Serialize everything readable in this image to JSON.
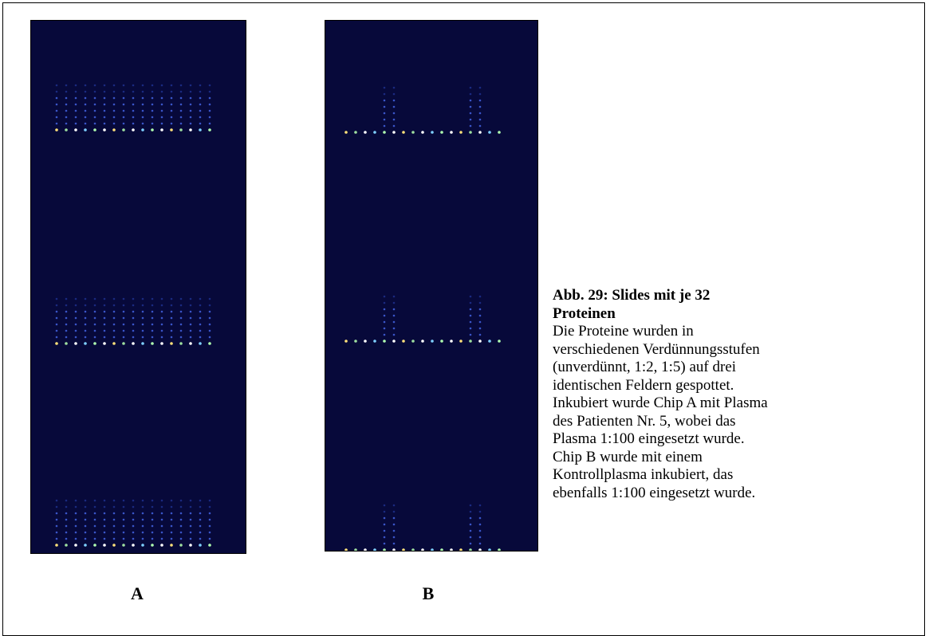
{
  "figure": {
    "panels": [
      {
        "label": "A"
      },
      {
        "label": "B"
      }
    ],
    "caption": {
      "title_lines": [
        "Abb. 29: Slides mit je 32",
        "Proteinen"
      ],
      "body_lines": [
        "Die Proteine wurden in",
        "verschiedenen Verdünnungsstufen",
        "(unverdünnt, 1:2, 1:5) auf drei",
        "identischen Feldern gespottet.",
        "Inkubiert wurde Chip A mit Plasma",
        "des Patienten Nr. 5, wobei das",
        "Plasma 1:100 eingesetzt wurde.",
        "Chip B wurde mit einem",
        "Kontrollplasma inkubiert, das",
        "ebenfalls 1:100 eingesetzt wurde."
      ]
    }
  }
}
